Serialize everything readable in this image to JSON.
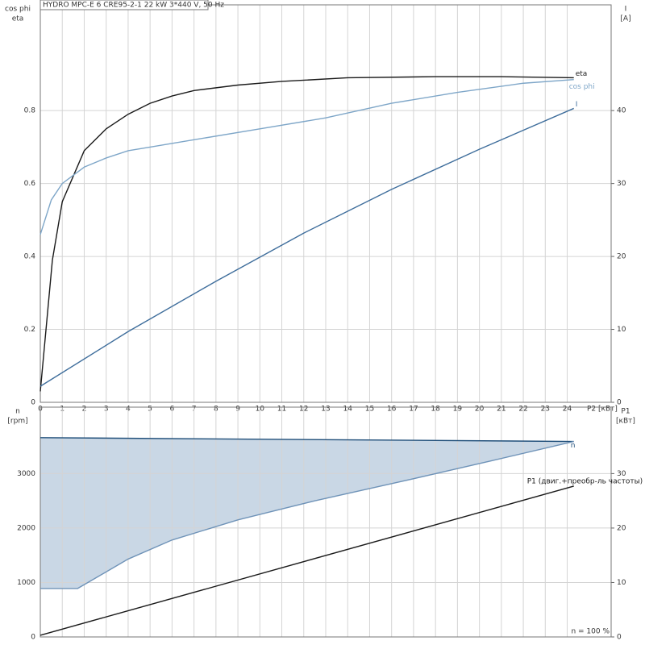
{
  "chart_data": [
    {
      "type": "line",
      "title": "HYDRO MPC-E 6 CRE95-2-1   22 kW   3*440 V, 50 Hz",
      "y_label": [
        "cos phi",
        "eta"
      ],
      "y2_label": [
        "I",
        "[A]"
      ],
      "x_label": "P2 [кВт]",
      "xlim": [
        0,
        26
      ],
      "xticks": [
        0,
        1,
        2,
        3,
        4,
        5,
        6,
        7,
        8,
        9,
        10,
        11,
        12,
        13,
        14,
        15,
        16,
        17,
        18,
        19,
        20,
        21,
        22,
        23,
        24
      ],
      "show_xtick_labels": true,
      "ylim": [
        0,
        1.09
      ],
      "yticks": [
        0,
        0.2,
        0.4,
        0.6,
        0.8
      ],
      "y2lim": [
        0,
        54.5
      ],
      "y2ticks": [
        0,
        10,
        20,
        30,
        40
      ],
      "grid": true,
      "series": [
        {
          "name": "eta",
          "color": "#1a1a1a",
          "x": [
            0,
            0.55,
            1,
            2,
            3,
            4,
            5,
            6,
            7,
            9,
            11,
            14,
            18,
            21,
            24.3
          ],
          "values": [
            0.03,
            0.39,
            0.55,
            0.69,
            0.75,
            0.79,
            0.82,
            0.84,
            0.855,
            0.87,
            0.88,
            0.89,
            0.893,
            0.893,
            0.89
          ]
        },
        {
          "name": "cos phi",
          "color": "#7ea6c8",
          "x": [
            0,
            0.5,
            1,
            2,
            3,
            4,
            5,
            7,
            10,
            13,
            16,
            19,
            22,
            24.3
          ],
          "values": [
            0.46,
            0.555,
            0.6,
            0.645,
            0.67,
            0.69,
            0.7,
            0.72,
            0.75,
            0.78,
            0.82,
            0.85,
            0.875,
            0.885
          ]
        },
        {
          "name": "I",
          "color": "#3f6e9c",
          "axis": "y2",
          "x": [
            0,
            4,
            8,
            12,
            16,
            20,
            24.3
          ],
          "values": [
            2.2,
            9.7,
            16.6,
            23.2,
            29.2,
            34.7,
            40.3
          ]
        }
      ]
    },
    {
      "type": "line",
      "y_label": [
        "n",
        "[rpm]"
      ],
      "y2_label": [
        "P1",
        "[кВт]"
      ],
      "annotation": "n = 100 %",
      "xlim": [
        0,
        26
      ],
      "xticks": [
        0,
        1,
        2,
        3,
        4,
        5,
        6,
        7,
        8,
        9,
        10,
        11,
        12,
        13,
        14,
        15,
        16,
        17,
        18,
        19,
        20,
        21,
        22,
        23,
        24
      ],
      "show_xtick_labels": false,
      "ylim": [
        0,
        4220
      ],
      "yticks": [
        0,
        1000,
        2000,
        3000
      ],
      "y2lim": [
        0,
        42.2
      ],
      "y2ticks": [
        0,
        10,
        20,
        30
      ],
      "grid": true,
      "series": [
        {
          "name": "n",
          "color": "#1f4e79",
          "x": [
            0,
            24.3
          ],
          "values": [
            3660,
            3590
          ]
        },
        {
          "color": "#6f93b8",
          "fill_to_previous": true,
          "fill": "#c9d7e5",
          "x": [
            0,
            1.7,
            4,
            6,
            9,
            12.5,
            16.5,
            20.5,
            24.3
          ],
          "values": [
            890,
            890,
            1430,
            1780,
            2150,
            2500,
            2860,
            3230,
            3590
          ]
        },
        {
          "name": "P1 (двиг.+преобр-ль частоты)",
          "color": "#1a1a1a",
          "axis": "y2",
          "x": [
            0,
            24.3
          ],
          "values": [
            0.3,
            27.7
          ]
        }
      ]
    }
  ]
}
